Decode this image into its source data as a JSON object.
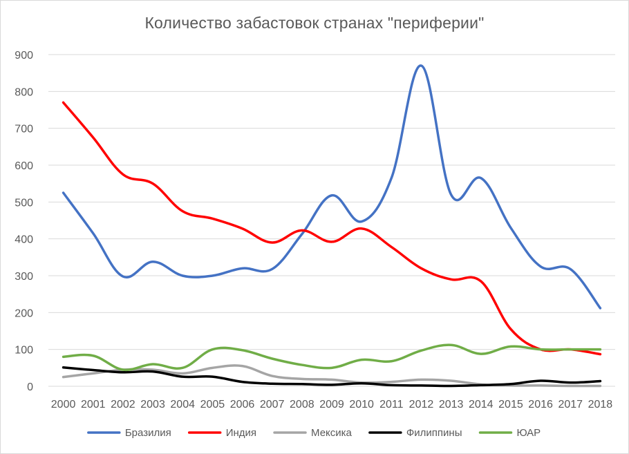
{
  "chart_data": {
    "type": "line",
    "title": "Количество забастовок странах \"периферии\"",
    "xlabel": "",
    "ylabel": "",
    "x": [
      "2000",
      "2001",
      "2002",
      "2003",
      "2004",
      "2005",
      "2006",
      "2007",
      "2008",
      "2009",
      "2010",
      "2011",
      "2012",
      "2013",
      "2014",
      "2015",
      "2016",
      "2017",
      "2018"
    ],
    "ylim": [
      0,
      900
    ],
    "yticks": [
      "0",
      "100",
      "200",
      "300",
      "400",
      "500",
      "600",
      "700",
      "800",
      "900"
    ],
    "grid": true,
    "legend": "bottom",
    "series": [
      {
        "name": "Бразилия",
        "color": "#4472c4",
        "values": [
          525,
          415,
          298,
          338,
          300,
          300,
          320,
          318,
          413,
          518,
          447,
          565,
          870,
          520,
          565,
          430,
          325,
          318,
          212
        ]
      },
      {
        "name": "Индия",
        "color": "#ff0000",
        "values": [
          770,
          675,
          575,
          550,
          475,
          455,
          428,
          390,
          423,
          392,
          428,
          378,
          320,
          290,
          285,
          155,
          100,
          100,
          87
        ]
      },
      {
        "name": "Мексика",
        "color": "#a5a5a5",
        "values": [
          25,
          35,
          45,
          45,
          35,
          50,
          55,
          28,
          20,
          18,
          10,
          12,
          18,
          15,
          5,
          2,
          2,
          1,
          1
        ]
      },
      {
        "name": "Филиппины",
        "color": "#000000",
        "values": [
          51,
          44,
          38,
          40,
          26,
          26,
          12,
          7,
          6,
          4,
          8,
          3,
          2,
          1,
          3,
          6,
          15,
          10,
          14
        ]
      },
      {
        "name": "ЮАР",
        "color": "#70ad47",
        "values": [
          80,
          83,
          45,
          60,
          50,
          100,
          98,
          75,
          58,
          50,
          72,
          68,
          97,
          112,
          88,
          108,
          100,
          100,
          100
        ]
      }
    ]
  }
}
